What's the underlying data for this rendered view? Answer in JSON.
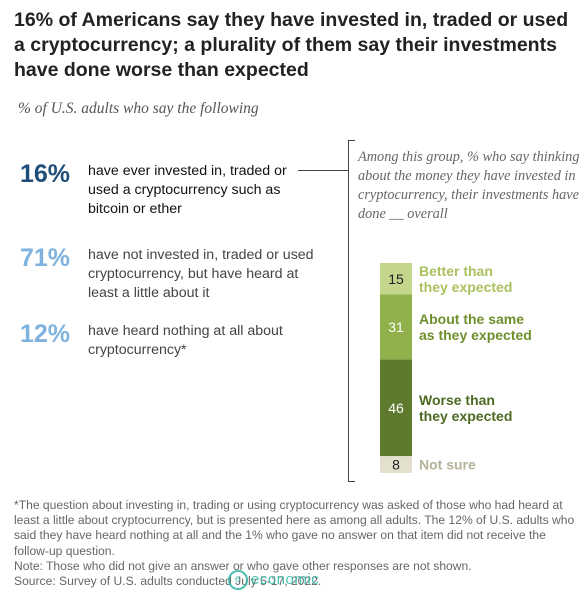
{
  "title": "16% of Americans say they have invested in, traded or used a cryptocurrency; a plurality of them say their investments have done worse than expected",
  "subtitle": "% of U.S. adults who say the following",
  "stats": [
    {
      "pct": "16%",
      "text": "have ever invested in, traded or used a cryptocurrency such as bitcoin or ether"
    },
    {
      "pct": "71%",
      "text": "have not invested in, traded or used cryptocurrency, but have heard at least a little about it"
    },
    {
      "pct": "12%",
      "text": "have heard nothing at all about cryptocurrency*"
    }
  ],
  "bracket_note": "Among this group, % who say thinking about the money they have invested in cryptocurrency, their investments have done __ overall",
  "chart_data": {
    "type": "bar",
    "stacked": true,
    "orientation": "vertical-stack",
    "categories": [
      "Better than they expected",
      "About the same as they expected",
      "Worse than they expected",
      "Not sure"
    ],
    "values": [
      15,
      31,
      46,
      8
    ],
    "label_lines": [
      [
        "Better than",
        "they expected"
      ],
      [
        "About the same",
        "as they expected"
      ],
      [
        "Worse than",
        "they expected"
      ],
      [
        "Not sure"
      ]
    ],
    "colors": [
      "#c4d68c",
      "#8fb04a",
      "#5d7a2e",
      "#e4e0ce"
    ],
    "label_colors": [
      "#a9c15e",
      "#6f8f2c",
      "#4d6a22",
      "#b5b29a"
    ],
    "value_text_colors": [
      "#222222",
      "#ffffff",
      "#ffffff",
      "#222222"
    ]
  },
  "footnotes": [
    "*The question about investing in, trading or using cryptocurrency was asked of those who had heard at least a little about cryptocurrency, but is presented here as among all adults. The 12% of U.S. adults who said they have heard nothing at all and the 1% who gave no answer on that item did not receive the follow-up question.",
    "Note: Those who did not give an answer or who gave other responses are not shown.",
    "Source: Survey of U.S. adults conducted July 5-17, 2022."
  ],
  "watermark": "economic"
}
